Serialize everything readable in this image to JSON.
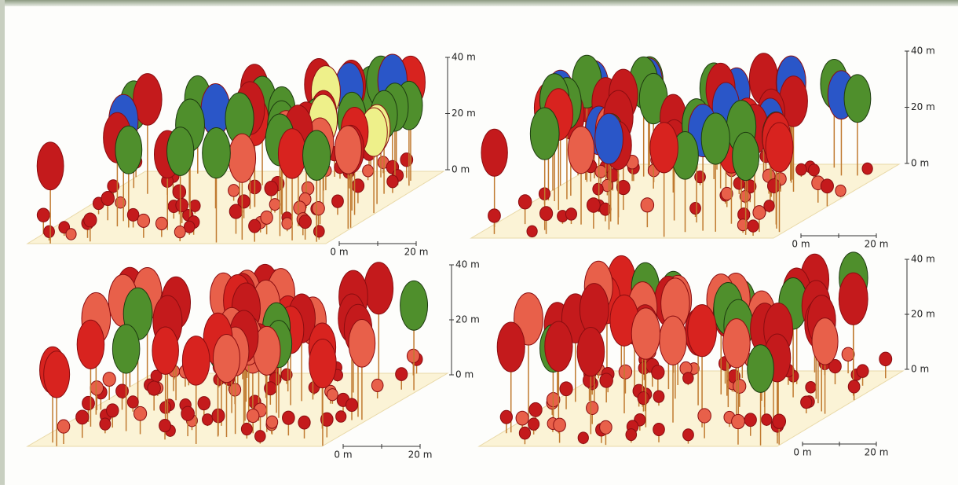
{
  "panels": [
    {
      "height_scale": {
        "ticks": [
          "40 m",
          "20 m",
          "0 m"
        ]
      },
      "scale_bar": {
        "labels": [
          "0 m",
          "20 m"
        ]
      }
    },
    {
      "height_scale": {
        "ticks": [
          "40 m",
          "20 m",
          "0 m"
        ]
      },
      "scale_bar": {
        "labels": [
          "0 m",
          "20 m"
        ]
      }
    },
    {
      "height_scale": {
        "ticks": [
          "40 m",
          "20 m",
          "0 m"
        ]
      },
      "scale_bar": {
        "labels": [
          "0 m",
          "20 m"
        ]
      }
    },
    {
      "height_scale": {
        "ticks": [
          "40 m",
          "20 m",
          "0 m"
        ]
      },
      "scale_bar": {
        "labels": [
          "0 m",
          "20 m"
        ]
      }
    }
  ]
}
